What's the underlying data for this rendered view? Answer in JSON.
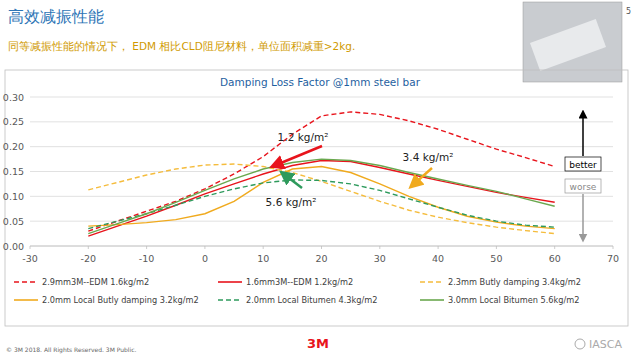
{
  "header": {
    "title": "高效减振性能",
    "subtitle": "同等减振性能的情况下， EDM 相比CLD阻尼材料，单位面积减重>2kg."
  },
  "chart_data": {
    "type": "line",
    "title": "Damping Loss Factor @1mm steel bar",
    "x": [
      -20,
      -15,
      -10,
      -5,
      0,
      5,
      10,
      15,
      20,
      25,
      30,
      35,
      40,
      45,
      50,
      55,
      60
    ],
    "series": [
      {
        "name": "2.9mm3M--EDM 1.6kg/m2",
        "color": "#e8141c",
        "line_style": "dashed",
        "values": [
          0.03,
          0.05,
          0.07,
          0.09,
          0.115,
          0.145,
          0.18,
          0.225,
          0.262,
          0.27,
          0.265,
          0.252,
          0.235,
          0.215,
          0.195,
          0.178,
          0.16
        ]
      },
      {
        "name": "1.6mm3M--EDM 1.2kg/m2",
        "color": "#e8141c",
        "line_style": "solid",
        "values": [
          0.02,
          0.04,
          0.06,
          0.082,
          0.105,
          0.125,
          0.145,
          0.162,
          0.172,
          0.17,
          0.158,
          0.145,
          0.132,
          0.12,
          0.108,
          0.098,
          0.088
        ]
      },
      {
        "name": "2.3mm Butly damping 3.4kg/m2",
        "color": "#f5bc3c",
        "line_style": "dashed",
        "values": [
          0.113,
          0.128,
          0.143,
          0.155,
          0.163,
          0.165,
          0.16,
          0.148,
          0.13,
          0.11,
          0.09,
          0.072,
          0.058,
          0.047,
          0.038,
          0.031,
          0.025
        ]
      },
      {
        "name": "2.0mm Local Butly damping 3.2kg/m2",
        "color": "#f0aa1e",
        "line_style": "solid",
        "values": [
          0.04,
          0.043,
          0.047,
          0.053,
          0.065,
          0.09,
          0.128,
          0.155,
          0.16,
          0.148,
          0.125,
          0.1,
          0.078,
          0.06,
          0.048,
          0.04,
          0.035
        ]
      },
      {
        "name": "2.0mm Local Bitumen 4.3kg/m2",
        "color": "#2e9a5c",
        "line_style": "dashed",
        "values": [
          0.035,
          0.05,
          0.065,
          0.082,
          0.1,
          0.115,
          0.127,
          0.133,
          0.132,
          0.125,
          0.112,
          0.095,
          0.078,
          0.062,
          0.05,
          0.042,
          0.038
        ]
      },
      {
        "name": "3.0mm Local Bitumen 5.6kg/m2",
        "color": "#6aa84f",
        "line_style": "solid",
        "values": [
          0.025,
          0.045,
          0.065,
          0.088,
          0.112,
          0.135,
          0.155,
          0.168,
          0.175,
          0.172,
          0.162,
          0.148,
          0.135,
          0.122,
          0.11,
          0.095,
          0.08
        ]
      }
    ],
    "xlim": [
      -30,
      70
    ],
    "xticks": [
      -30,
      -20,
      -10,
      0,
      10,
      20,
      30,
      40,
      50,
      60,
      70
    ],
    "ylim": [
      0,
      0.3
    ],
    "yticks": [
      {
        "value": 0,
        "label": "0.00"
      },
      {
        "value": 0.05,
        "label": "0.05"
      },
      {
        "value": 0.1,
        "label": "0.10"
      },
      {
        "value": 0.15,
        "label": "0.15"
      },
      {
        "value": 0.2,
        "label": "0.20"
      },
      {
        "value": 0.25,
        "label": "0.25"
      },
      {
        "value": 0.3,
        "label": "0.30"
      }
    ],
    "grid": true,
    "legend": "bottom",
    "annotations": [
      "1.2 kg/m²",
      "3.4 kg/m²",
      "5.6 kg/m²"
    ]
  },
  "scale_hint": {
    "better": "better",
    "worse": "worse"
  },
  "footer": {
    "copyright": "© 3M 2018. All Rights Reserved.  3M Public.",
    "logo": "3M",
    "page": "5",
    "watermark": "IASCA"
  }
}
